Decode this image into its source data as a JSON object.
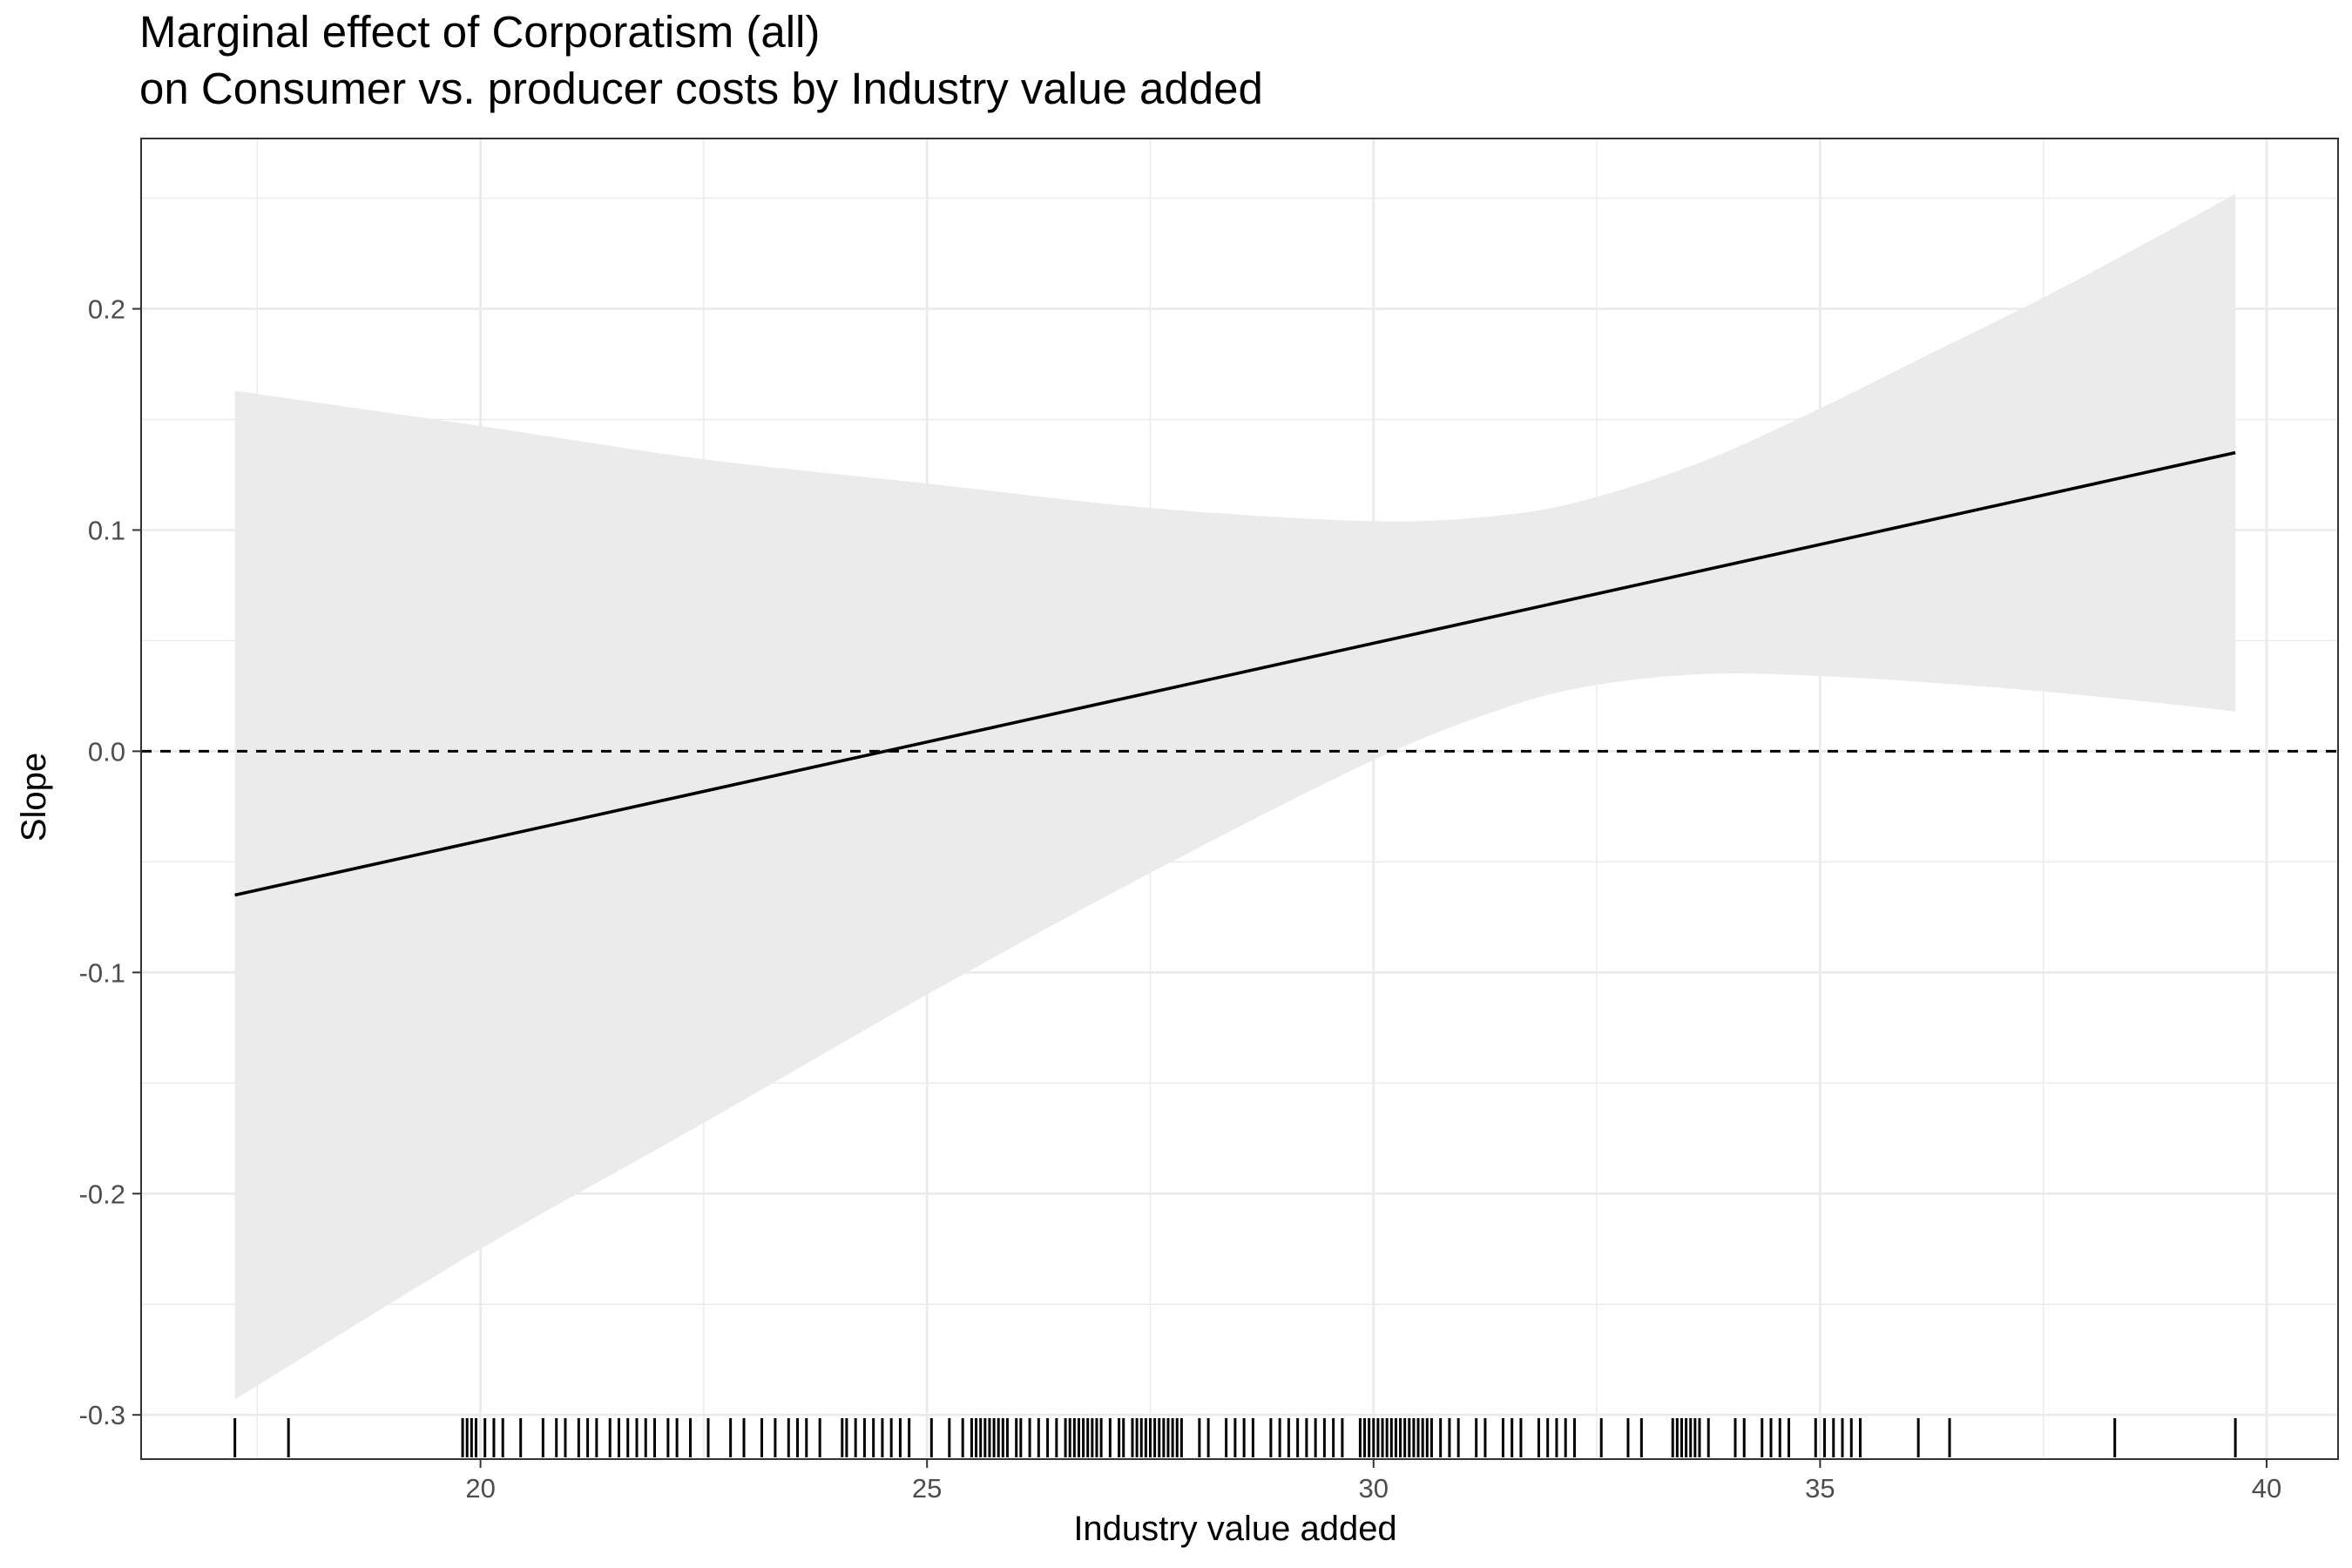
{
  "chart_data": {
    "type": "line",
    "title": "Marginal effect of Corporatism (all)",
    "subtitle": "on Consumer vs. producer costs by Industry value added",
    "xlabel": "Industry value added",
    "ylabel": "Slope",
    "xlim": [
      16.2,
      40.8
    ],
    "ylim": [
      -0.32,
      0.277
    ],
    "x_ticks": [
      20,
      25,
      30,
      35,
      40
    ],
    "x_tick_labels": [
      "20",
      "25",
      "30",
      "35",
      "40"
    ],
    "y_ticks": [
      -0.3,
      -0.2,
      -0.1,
      0.0,
      0.1,
      0.2
    ],
    "y_tick_labels": [
      "-0.3",
      "-0.2",
      "-0.1",
      "0.0",
      "0.1",
      "0.2"
    ],
    "grid": true,
    "reference_line": {
      "y": 0.0,
      "style": "dashed"
    },
    "series": [
      {
        "type": "line",
        "x": [
          17.25,
          39.65
        ],
        "y": [
          -0.065,
          0.135
        ],
        "color": "#000000"
      }
    ],
    "ribbon": {
      "color": "#ebebeb",
      "x": [
        17.25,
        20,
        22.5,
        25,
        27.5,
        30,
        31.5,
        32.5,
        33.75,
        35,
        36.25,
        37.5,
        38.75,
        39.65
      ],
      "upper": [
        0.163,
        0.147,
        0.132,
        0.121,
        0.11,
        0.104,
        0.107,
        0.115,
        0.132,
        0.155,
        0.18,
        0.205,
        0.232,
        0.252
      ],
      "lower": [
        -0.293,
        -0.225,
        -0.168,
        -0.11,
        -0.055,
        -0.004,
        0.02,
        0.03,
        0.035,
        0.034,
        0.031,
        0.027,
        0.022,
        0.018
      ]
    },
    "rug_x": [
      17.25,
      17.85,
      19.8,
      19.85,
      19.9,
      19.95,
      20.05,
      20.15,
      20.25,
      20.45,
      20.7,
      20.85,
      20.95,
      21.1,
      21.2,
      21.3,
      21.45,
      21.55,
      21.65,
      21.75,
      21.85,
      21.95,
      22.1,
      22.2,
      22.35,
      22.55,
      22.8,
      22.95,
      23.15,
      23.3,
      23.45,
      23.55,
      23.65,
      23.8,
      24.05,
      24.1,
      24.2,
      24.3,
      24.4,
      24.5,
      24.6,
      24.7,
      24.8,
      25.05,
      25.25,
      25.4,
      25.5,
      25.55,
      25.6,
      25.65,
      25.7,
      25.75,
      25.8,
      25.85,
      25.9,
      26.0,
      26.05,
      26.15,
      26.25,
      26.35,
      26.45,
      26.55,
      26.6,
      26.65,
      26.7,
      26.75,
      26.8,
      26.85,
      26.9,
      26.95,
      27.05,
      27.15,
      27.2,
      27.3,
      27.35,
      27.4,
      27.45,
      27.5,
      27.55,
      27.6,
      27.65,
      27.7,
      27.75,
      27.8,
      27.85,
      28.05,
      28.15,
      28.35,
      28.45,
      28.55,
      28.65,
      28.85,
      28.95,
      29.05,
      29.15,
      29.25,
      29.35,
      29.45,
      29.55,
      29.65,
      29.85,
      29.9,
      29.95,
      30.0,
      30.05,
      30.1,
      30.15,
      30.2,
      30.25,
      30.3,
      30.35,
      30.4,
      30.45,
      30.5,
      30.55,
      30.6,
      30.65,
      30.75,
      30.85,
      30.95,
      31.15,
      31.25,
      31.45,
      31.55,
      31.65,
      31.85,
      31.95,
      32.05,
      32.15,
      32.25,
      32.55,
      32.85,
      33.0,
      33.35,
      33.4,
      33.45,
      33.5,
      33.55,
      33.6,
      33.65,
      33.75,
      34.05,
      34.15,
      34.35,
      34.45,
      34.55,
      34.65,
      34.95,
      35.05,
      35.15,
      35.25,
      35.35,
      35.45,
      36.1,
      36.45,
      38.3,
      39.65
    ]
  }
}
